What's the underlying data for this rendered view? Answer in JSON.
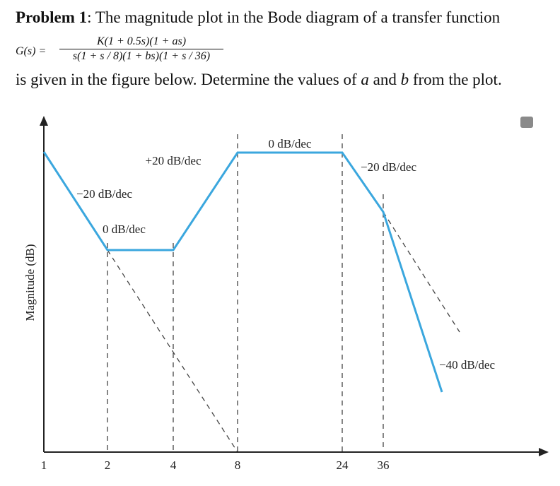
{
  "header": {
    "label": "Problem 1",
    "text": ": The magnitude plot in the Bode diagram of a transfer function"
  },
  "equation": {
    "lhs": "G(s) =",
    "numerator": "K(1 + 0.5s)(1 + as)",
    "denominator": "s(1 + s / 8)(1 + bs)(1 + s / 36)"
  },
  "question": [
    "is given in the figure below. Determine the values of ",
    "a",
    " and ",
    "b",
    " from the plot."
  ],
  "figure": {
    "y_label": "Magnitude (dB)",
    "x_ticks": [
      1,
      2,
      4,
      8,
      24,
      36
    ],
    "slope_labels": [
      "+20 dB/dec",
      "0 dB/dec",
      "−20 dB/dec",
      "−20 dB/dec",
      "0 dB/dec",
      "−40 dB/dec"
    ]
  }
}
